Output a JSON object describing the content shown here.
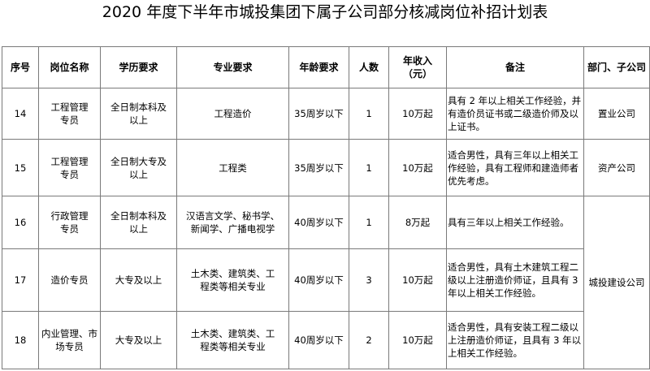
{
  "title": "2020 年度下半年市城投集团下属子公司部分核减岗位补招计划表",
  "headers": [
    "序号",
    "岗位名称",
    "学历要求",
    "专业要求",
    "年龄要求",
    "人数",
    "年收入（元）",
    "备注",
    "部门、子公司"
  ],
  "rows": [
    {
      "no": "14",
      "position": "工程管理专员",
      "education": "全日制本科及以上",
      "major": "工程造价",
      "age": "35周岁以下",
      "count": "1",
      "income": "10万起",
      "note": "具有 2 年以上相关工作经验，并有造价员证书或二级造价师及以上证书。",
      "dept": "置业公司"
    },
    {
      "no": "15",
      "position": "工程管理专员",
      "education": "全日制大专及以上",
      "major": "工程类",
      "age": "35周岁以下",
      "count": "1",
      "income": "10万起",
      "note": "适合男性，具有三年以上相关工作经验，具有工程师和建造师者优先考虑。",
      "dept": "资产公司"
    },
    {
      "no": "16",
      "position": "行政管理专员",
      "education": "全日制本科及以上",
      "major": "汉语言文学、秘书学、新闻学、广播电视学",
      "age": "40周岁以下",
      "count": "1",
      "income": "8万起",
      "note": "具有三年以上相关工作经验。",
      "dept": "城投建设公司"
    },
    {
      "no": "17",
      "position": "造价专员",
      "education": "大专及以上",
      "major": "土木类、建筑类、工程类等相关专业",
      "age": "40周岁以下",
      "count": "3",
      "income": "10万起",
      "note": "适合男性，具有土木建筑工程二级以上注册造价师证，且具有 3 年以上相关工作经验。"
    },
    {
      "no": "18",
      "position": "内业管理、市场专员",
      "education": "大专及以上",
      "major": "土木类、建筑类、工程类等相关专业",
      "age": "40周岁以下",
      "count": "2",
      "income": "10万起",
      "note": "适合男性，具有安装工程二级以上注册造价师证，且具有 3 年以上相关工作经验。"
    }
  ]
}
